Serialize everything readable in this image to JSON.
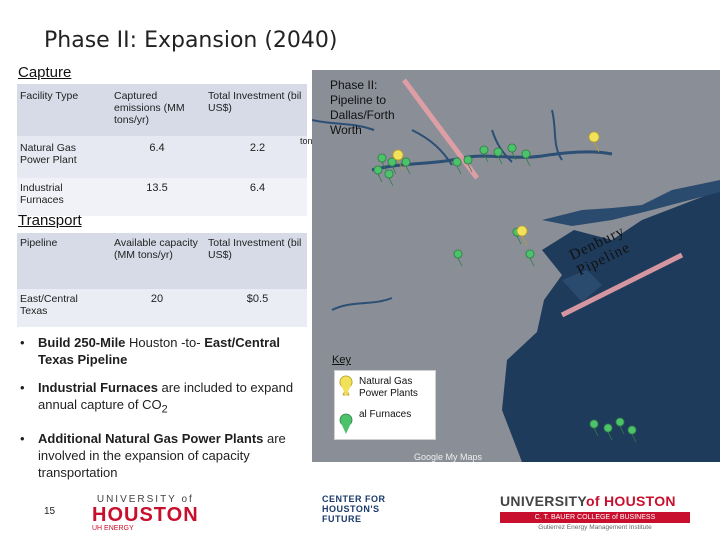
{
  "title": "Phase II: Expansion (2040)",
  "capture": {
    "heading": "Capture",
    "headers": [
      "Facility Type",
      "Captured emissions (MM tons/yr)",
      "Total Investment (bil US$)"
    ],
    "rows": [
      [
        "Natural Gas Power Plant",
        "6.4",
        "2.2"
      ],
      [
        "Industrial Furnaces",
        "13.5",
        "6.4"
      ]
    ]
  },
  "transport": {
    "heading": "Transport",
    "headers": [
      "Pipeline",
      "Available capacity (MM tons/yr)",
      "Total Investment (bil US$)"
    ],
    "rows": [
      [
        "East/Central Texas",
        "20",
        "$0.5"
      ]
    ]
  },
  "bullets": [
    {
      "bold": "Build 250-Mile",
      "text": " Houston -to- ",
      "bold2": "East/Central Texas Pipeline",
      "text2": ""
    },
    {
      "bold": "Industrial Furnaces",
      "text": " are included to expand annual capture of CO",
      "sub": "2",
      "bold2": "",
      "text2": ""
    },
    {
      "bold": "Additional Natural Gas Power Plants",
      "text": " are involved in the expansion of capacity transportation",
      "bold2": "",
      "text2": ""
    }
  ],
  "map": {
    "pipeline_label": "Phase II: Pipeline to Dallas/Forth Worth",
    "denbury_label": "Denbury Pipeline",
    "partial_label": "ton",
    "google_mark": "Google My Maps",
    "colors": {
      "land": "#8a8e96",
      "water": "#1f3b5c",
      "pipeline": "#e8a0a8",
      "marker_green": "#4cc36a",
      "marker_yellow": "#f2e25a"
    }
  },
  "key": {
    "title": "Key",
    "items": [
      "Natural Gas Power Plants",
      "al Furnaces"
    ]
  },
  "footer": {
    "page_number": "15",
    "uh_top": "UNIVERSITY of",
    "uh_main": "HOUSTON",
    "uh_sub": "UH ENERGY",
    "chf": [
      "CENTER FOR",
      "HOUSTON'S",
      "FUTURE"
    ],
    "bauer_main_a": "UNIVERSITY",
    "bauer_main_b": "of HOUSTON",
    "bauer_band": "C. T. BAUER COLLEGE of BUSINESS",
    "bauer_sub": "Gutierrez Energy Management Institute"
  }
}
